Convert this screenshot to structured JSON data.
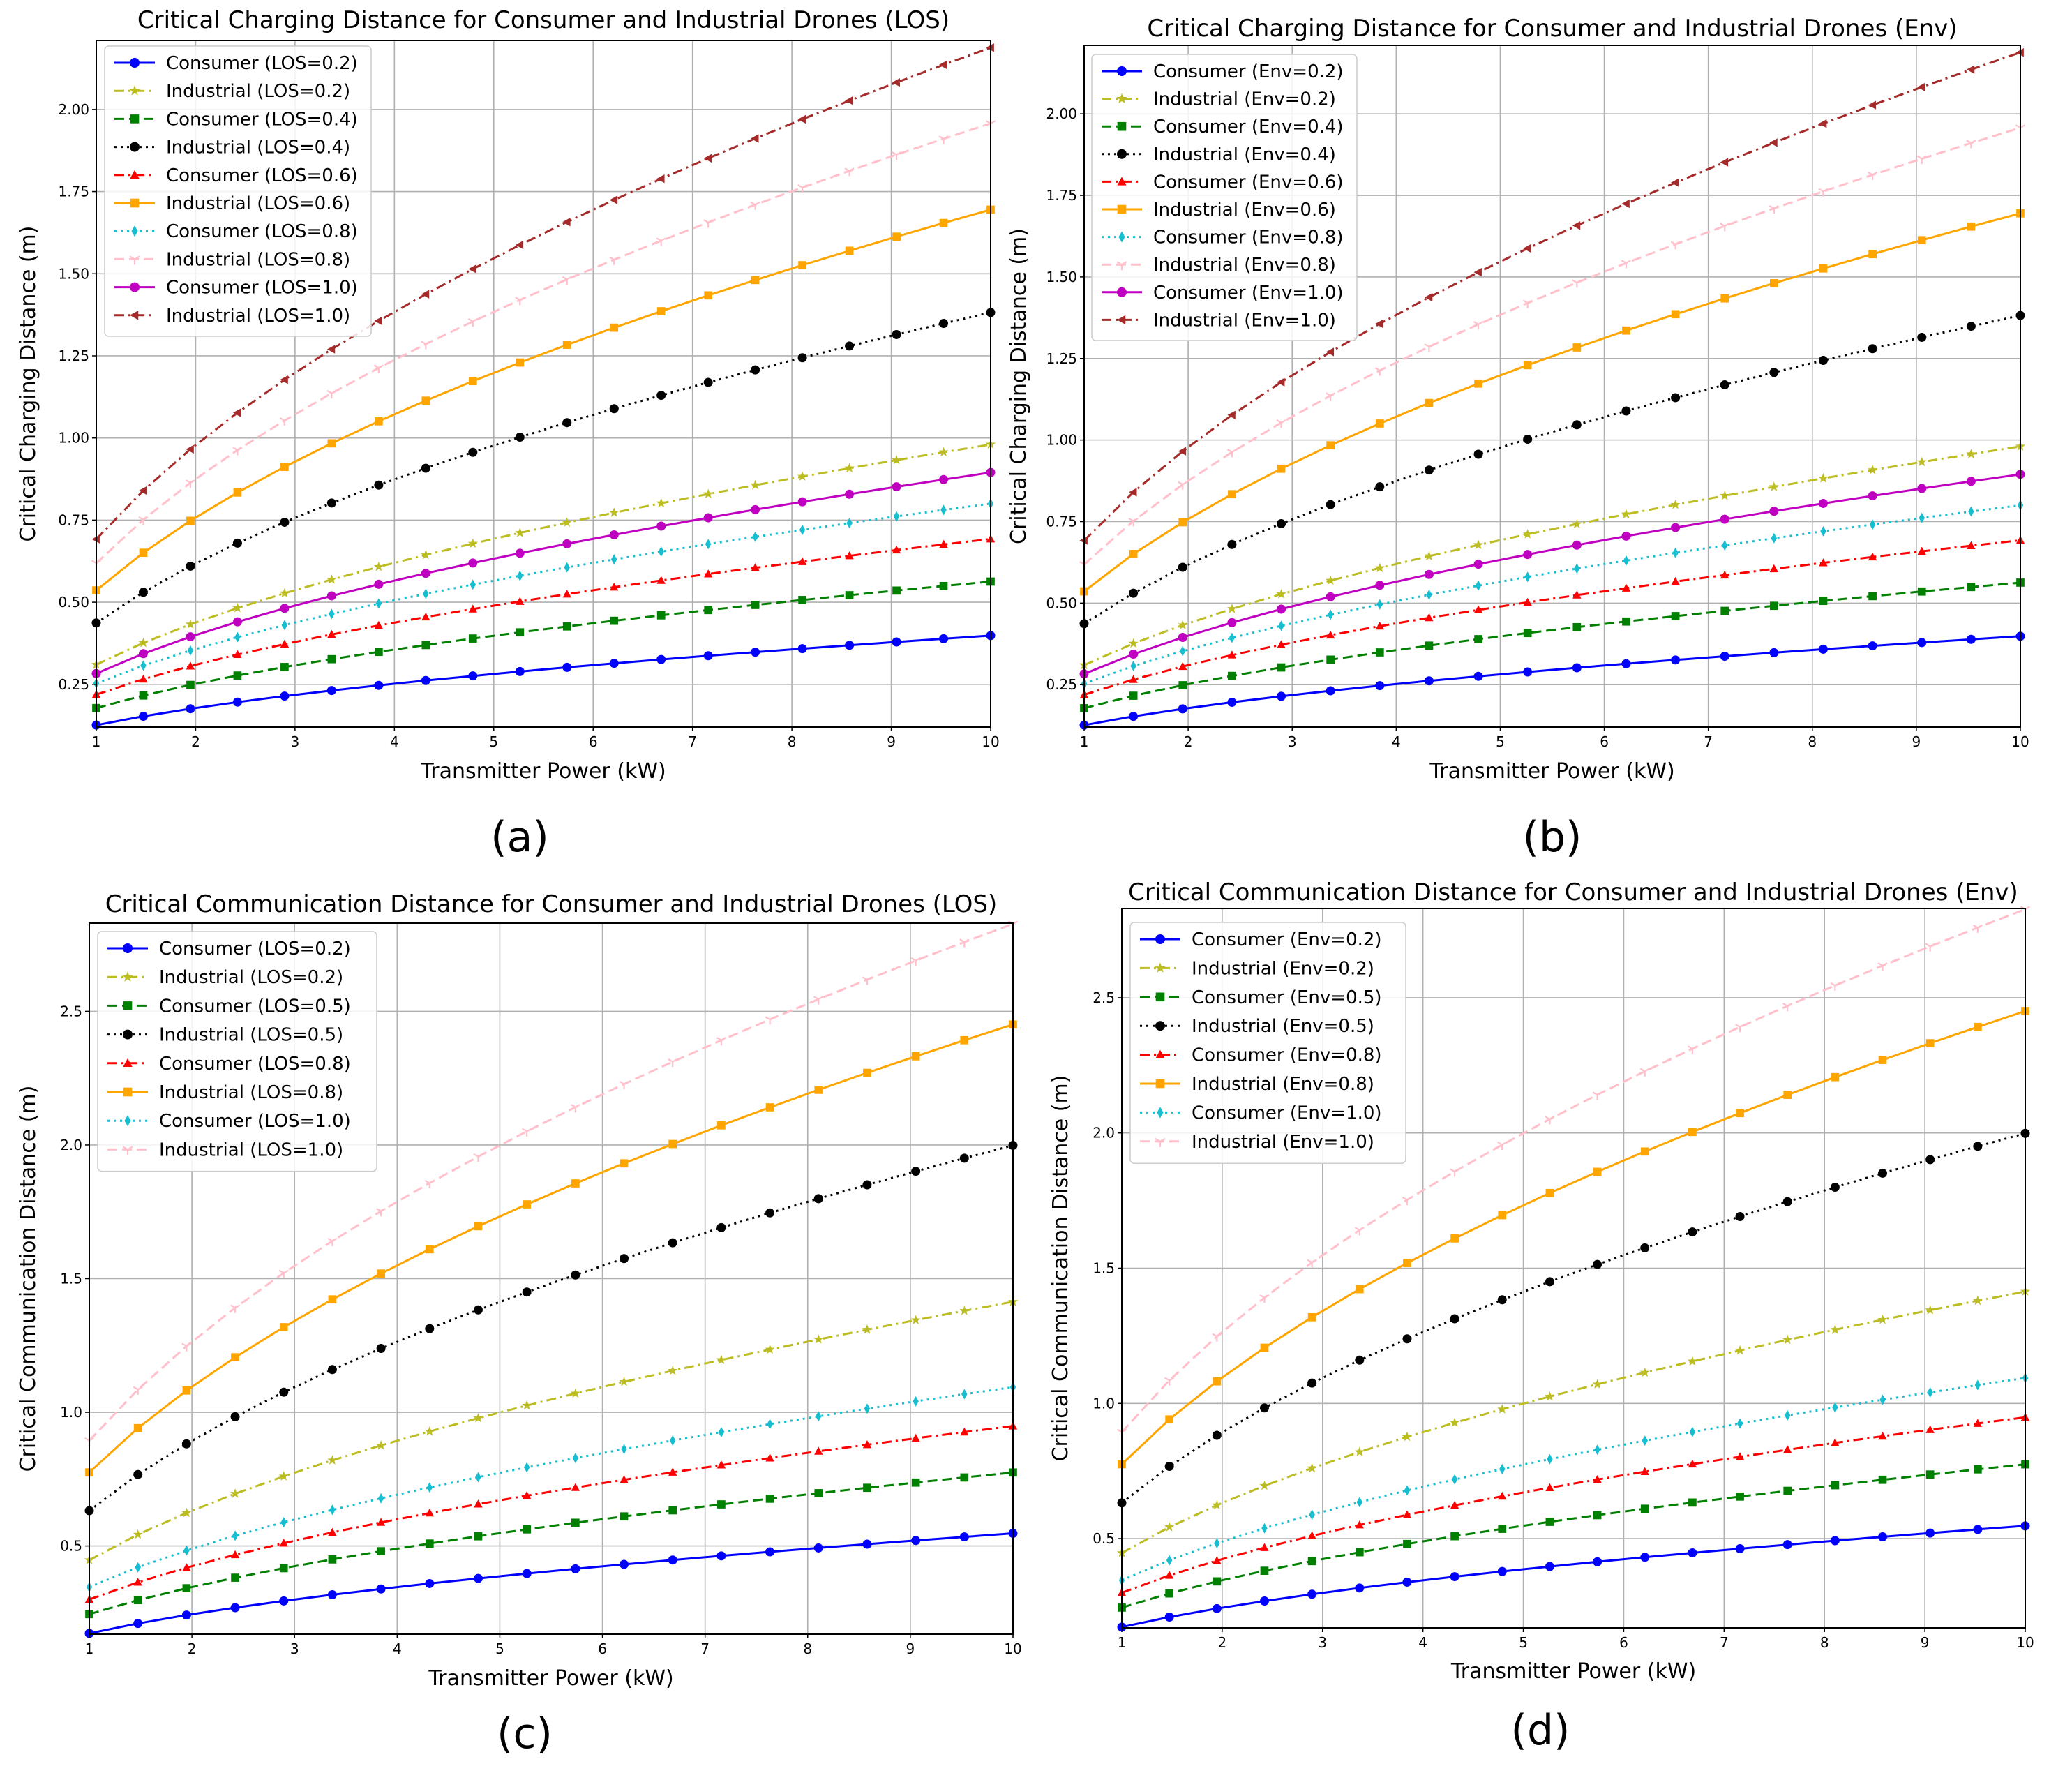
{
  "colors": {
    "blue": "#0000ff",
    "olive": "#bcbd22",
    "green": "#008000",
    "black": "#000000",
    "red": "#ff0000",
    "orange": "#ffa500",
    "cyan": "#17becf",
    "pink": "#ffc0cb",
    "magenta": "#c000c0",
    "brown": "#a52a2a",
    "grid": "#b0b0b0"
  },
  "chart_data": [
    {
      "panel_label": "(a)",
      "type": "line",
      "title": "Critical Charging Distance for Consumer and Industrial Drones (LOS)",
      "xlabel": "Transmitter Power (kW)",
      "ylabel": "Critical Charging Distance (m)",
      "xlim": [
        1,
        10
      ],
      "ylim": [
        0.12,
        2.21
      ],
      "xticks": [
        "1",
        "2",
        "3",
        "4",
        "5",
        "6",
        "7",
        "8",
        "9",
        "10"
      ],
      "yticks": [
        "0.25",
        "0.50",
        "0.75",
        "1.00",
        "1.25",
        "1.50",
        "1.75",
        "2.00"
      ],
      "ytick_values": [
        0.25,
        0.5,
        0.75,
        1.0,
        1.25,
        1.5,
        1.75,
        2.0
      ],
      "grid": true,
      "legend_position": "top-left",
      "exponent": 0.5,
      "series": [
        {
          "name": "Consumer (LOS=0.2)",
          "color": "blue",
          "marker": "circle",
          "dash": "solid",
          "start": 0.126
        },
        {
          "name": "Industrial (LOS=0.2)",
          "color": "olive",
          "marker": "star",
          "dash": "dashdot",
          "start": 0.31
        },
        {
          "name": "Consumer (LOS=0.4)",
          "color": "green",
          "marker": "square",
          "dash": "dashed",
          "start": 0.178
        },
        {
          "name": "Industrial (LOS=0.4)",
          "color": "black",
          "marker": "circle",
          "dash": "dotted",
          "start": 0.437
        },
        {
          "name": "Consumer (LOS=0.6)",
          "color": "red",
          "marker": "triangle",
          "dash": "dashdot",
          "start": 0.219
        },
        {
          "name": "Industrial (LOS=0.6)",
          "color": "orange",
          "marker": "square",
          "dash": "solid",
          "start": 0.536
        },
        {
          "name": "Consumer (LOS=0.8)",
          "color": "cyan",
          "marker": "diamond",
          "dash": "dotted",
          "start": 0.253
        },
        {
          "name": "Industrial (LOS=0.8)",
          "color": "pink",
          "marker": "tridown",
          "dash": "dashed",
          "start": 0.619
        },
        {
          "name": "Consumer (LOS=1.0)",
          "color": "magenta",
          "marker": "circle",
          "dash": "solid",
          "start": 0.283
        },
        {
          "name": "Industrial (LOS=1.0)",
          "color": "brown",
          "marker": "triangleleft",
          "dash": "dashdot",
          "start": 0.692
        }
      ]
    },
    {
      "panel_label": "(b)",
      "type": "line",
      "title": "Critical Charging Distance for Consumer and Industrial Drones (Env)",
      "xlabel": "Transmitter Power (kW)",
      "ylabel": "Critical Charging Distance (m)",
      "xlim": [
        1,
        10
      ],
      "ylim": [
        0.12,
        2.21
      ],
      "xticks": [
        "1",
        "2",
        "3",
        "4",
        "5",
        "6",
        "7",
        "8",
        "9",
        "10"
      ],
      "yticks": [
        "0.25",
        "0.50",
        "0.75",
        "1.00",
        "1.25",
        "1.50",
        "1.75",
        "2.00"
      ],
      "ytick_values": [
        0.25,
        0.5,
        0.75,
        1.0,
        1.25,
        1.5,
        1.75,
        2.0
      ],
      "grid": true,
      "legend_position": "top-left",
      "exponent": 0.5,
      "series": [
        {
          "name": "Consumer (Env=0.2)",
          "color": "blue",
          "marker": "circle",
          "dash": "solid",
          "start": 0.126
        },
        {
          "name": "Industrial (Env=0.2)",
          "color": "olive",
          "marker": "star",
          "dash": "dashdot",
          "start": 0.31
        },
        {
          "name": "Consumer (Env=0.4)",
          "color": "green",
          "marker": "square",
          "dash": "dashed",
          "start": 0.178
        },
        {
          "name": "Industrial (Env=0.4)",
          "color": "black",
          "marker": "circle",
          "dash": "dotted",
          "start": 0.437
        },
        {
          "name": "Consumer (Env=0.6)",
          "color": "red",
          "marker": "triangle",
          "dash": "dashdot",
          "start": 0.219
        },
        {
          "name": "Industrial (Env=0.6)",
          "color": "orange",
          "marker": "square",
          "dash": "solid",
          "start": 0.536
        },
        {
          "name": "Consumer (Env=0.8)",
          "color": "cyan",
          "marker": "diamond",
          "dash": "dotted",
          "start": 0.253
        },
        {
          "name": "Industrial (Env=0.8)",
          "color": "pink",
          "marker": "tridown",
          "dash": "dashed",
          "start": 0.619
        },
        {
          "name": "Consumer (Env=1.0)",
          "color": "magenta",
          "marker": "circle",
          "dash": "solid",
          "start": 0.283
        },
        {
          "name": "Industrial (Env=1.0)",
          "color": "brown",
          "marker": "triangleleft",
          "dash": "dashdot",
          "start": 0.692
        }
      ]
    },
    {
      "panel_label": "(c)",
      "type": "line",
      "title": "Critical Communication Distance for Consumer and Industrial Drones (LOS)",
      "xlabel": "Transmitter Power (kW)",
      "ylabel": "Critical Communication Distance (m)",
      "xlim": [
        1,
        10
      ],
      "ylim": [
        0.17,
        2.83
      ],
      "xticks": [
        "1",
        "2",
        "3",
        "4",
        "5",
        "6",
        "7",
        "8",
        "9",
        "10"
      ],
      "yticks": [
        "0.5",
        "1.0",
        "1.5",
        "2.0",
        "2.5"
      ],
      "ytick_values": [
        0.5,
        1.0,
        1.5,
        2.0,
        2.5
      ],
      "grid": true,
      "legend_position": "top-left",
      "exponent": 0.5,
      "series": [
        {
          "name": "Consumer (LOS=0.2)",
          "color": "blue",
          "marker": "circle",
          "dash": "solid",
          "start": 0.173
        },
        {
          "name": "Industrial (LOS=0.2)",
          "color": "olive",
          "marker": "star",
          "dash": "dashdot",
          "start": 0.447
        },
        {
          "name": "Consumer (LOS=0.5)",
          "color": "green",
          "marker": "square",
          "dash": "dashed",
          "start": 0.245
        },
        {
          "name": "Industrial (LOS=0.5)",
          "color": "black",
          "marker": "circle",
          "dash": "dotted",
          "start": 0.632
        },
        {
          "name": "Consumer (LOS=0.8)",
          "color": "red",
          "marker": "triangle",
          "dash": "dashdot",
          "start": 0.3
        },
        {
          "name": "Industrial (LOS=0.8)",
          "color": "orange",
          "marker": "square",
          "dash": "solid",
          "start": 0.775
        },
        {
          "name": "Consumer (LOS=1.0)",
          "color": "cyan",
          "marker": "diamond",
          "dash": "dotted",
          "start": 0.346
        },
        {
          "name": "Industrial (LOS=1.0)",
          "color": "pink",
          "marker": "tridown",
          "dash": "dashed",
          "start": 0.894
        }
      ]
    },
    {
      "panel_label": "(d)",
      "type": "line",
      "title": "Critical Communication Distance for Consumer and Industrial Drones (Env)",
      "xlabel": "Transmitter Power (kW)",
      "ylabel": "Critical Communication Distance (m)",
      "xlim": [
        1,
        10
      ],
      "ylim": [
        0.17,
        2.83
      ],
      "xticks": [
        "1",
        "2",
        "3",
        "4",
        "5",
        "6",
        "7",
        "8",
        "9",
        "10"
      ],
      "yticks": [
        "0.5",
        "1.0",
        "1.5",
        "2.0",
        "2.5"
      ],
      "ytick_values": [
        0.5,
        1.0,
        1.5,
        2.0,
        2.5
      ],
      "grid": true,
      "legend_position": "top-left",
      "exponent": 0.5,
      "series": [
        {
          "name": "Consumer (Env=0.2)",
          "color": "blue",
          "marker": "circle",
          "dash": "solid",
          "start": 0.173
        },
        {
          "name": "Industrial (Env=0.2)",
          "color": "olive",
          "marker": "star",
          "dash": "dashdot",
          "start": 0.447
        },
        {
          "name": "Consumer (Env=0.5)",
          "color": "green",
          "marker": "square",
          "dash": "dashed",
          "start": 0.245
        },
        {
          "name": "Industrial (Env=0.5)",
          "color": "black",
          "marker": "circle",
          "dash": "dotted",
          "start": 0.632
        },
        {
          "name": "Consumer (Env=0.8)",
          "color": "red",
          "marker": "triangle",
          "dash": "dashdot",
          "start": 0.3
        },
        {
          "name": "Industrial (Env=0.8)",
          "color": "orange",
          "marker": "square",
          "dash": "solid",
          "start": 0.775
        },
        {
          "name": "Consumer (Env=1.0)",
          "color": "cyan",
          "marker": "diamond",
          "dash": "dotted",
          "start": 0.346
        },
        {
          "name": "Industrial (Env=1.0)",
          "color": "pink",
          "marker": "tridown",
          "dash": "dashed",
          "start": 0.894
        }
      ]
    }
  ]
}
